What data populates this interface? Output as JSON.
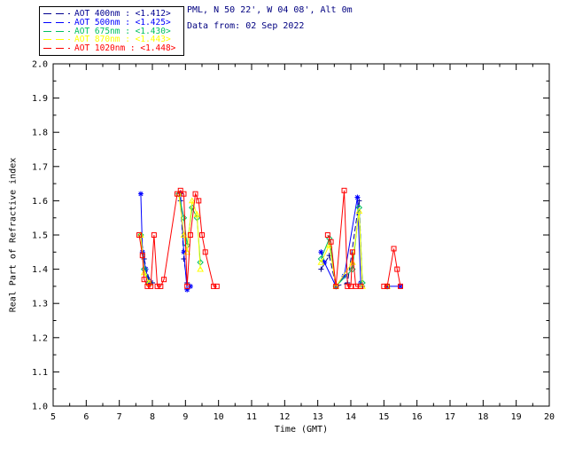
{
  "header": {
    "line1": "PML, N 50 22', W 04 08', Alt 0m",
    "line2": "Data from: 02 Sep 2022",
    "color": "#000080"
  },
  "legend": {
    "entries": [
      {
        "label": "AOT  400nm : <1.412>",
        "color": "#000090",
        "sample_dash": "9,5"
      },
      {
        "label": "AOT  500nm : <1.425>",
        "color": "#0000FF",
        "sample_dash": "9,5"
      },
      {
        "label": "AOT  675nm : <1.430>",
        "color": "#00C060",
        "sample_dash": "9,5"
      },
      {
        "label": "AOT  870nm : <1.443>",
        "color": "#FFFF00",
        "sample_dash": "9,5"
      },
      {
        "label": "AOT 1020nm : <1.448>",
        "color": "#FF0000",
        "sample_dash": "9,5"
      }
    ]
  },
  "chart_data": {
    "type": "line",
    "title": "",
    "xlabel": "Time (GMT)",
    "ylabel": "Real Part of Refractive index",
    "xlim": [
      5,
      20
    ],
    "ylim": [
      1.0,
      2.0
    ],
    "x_tick_step": 1,
    "y_tick_step": 0.1,
    "x_ticks": [
      "5",
      "6",
      "7",
      "8",
      "9",
      "10",
      "11",
      "12",
      "13",
      "14",
      "15",
      "16",
      "17",
      "18",
      "19",
      "20"
    ],
    "y_ticks": [
      "1.0",
      "1.1",
      "1.2",
      "1.3",
      "1.4",
      "1.5",
      "1.6",
      "1.7",
      "1.8",
      "1.9",
      "2.0"
    ],
    "grid": false,
    "legend_position": "outside-top-left",
    "series": [
      {
        "name": "AOT 400nm",
        "retrieved_value": "<1.412>",
        "color": "#000090",
        "marker": "plus",
        "dash": "6,3",
        "points": [
          [
            7.65,
            1.5
          ],
          [
            7.75,
            1.43
          ],
          [
            7.9,
            1.37
          ],
          [
            8.0,
            1.36
          ],
          [
            8.85,
            1.6
          ],
          [
            8.95,
            1.43
          ],
          [
            9.05,
            1.36
          ],
          [
            13.1,
            1.4
          ],
          [
            13.35,
            1.44
          ],
          [
            13.55,
            1.35
          ],
          [
            13.9,
            1.36
          ],
          [
            14.25,
            1.6
          ],
          [
            14.35,
            1.35
          ]
        ]
      },
      {
        "name": "AOT 500nm",
        "retrieved_value": "<1.425>",
        "color": "#0000FF",
        "marker": "asterisk",
        "dash": "",
        "points": [
          [
            7.65,
            1.62
          ],
          [
            7.7,
            1.45
          ],
          [
            7.8,
            1.4
          ],
          [
            7.9,
            1.36
          ],
          [
            8.85,
            1.62
          ],
          [
            8.95,
            1.45
          ],
          [
            9.05,
            1.34
          ],
          [
            9.15,
            1.35
          ],
          [
            13.1,
            1.45
          ],
          [
            13.2,
            1.42
          ],
          [
            13.55,
            1.35
          ],
          [
            13.8,
            1.38
          ],
          [
            14.2,
            1.61
          ],
          [
            14.3,
            1.36
          ],
          [
            15.1,
            1.35
          ],
          [
            15.5,
            1.35
          ]
        ]
      },
      {
        "name": "AOT 675nm",
        "retrieved_value": "<1.430>",
        "color": "#00C060",
        "marker": "diamond",
        "dash": "",
        "points": [
          [
            7.65,
            1.5
          ],
          [
            7.75,
            1.4
          ],
          [
            7.9,
            1.36
          ],
          [
            8.8,
            1.62
          ],
          [
            8.95,
            1.55
          ],
          [
            9.05,
            1.47
          ],
          [
            9.2,
            1.58
          ],
          [
            9.35,
            1.55
          ],
          [
            9.45,
            1.42
          ],
          [
            13.1,
            1.43
          ],
          [
            13.35,
            1.49
          ],
          [
            13.55,
            1.35
          ],
          [
            14.05,
            1.4
          ],
          [
            14.25,
            1.58
          ],
          [
            14.35,
            1.36
          ],
          [
            15.1,
            1.35
          ]
        ]
      },
      {
        "name": "AOT 870nm",
        "retrieved_value": "<1.443>",
        "color": "#FFFF00",
        "marker": "triangle",
        "dash": "",
        "points": [
          [
            7.65,
            1.5
          ],
          [
            7.75,
            1.39
          ],
          [
            7.9,
            1.36
          ],
          [
            8.8,
            1.62
          ],
          [
            8.95,
            1.5
          ],
          [
            9.05,
            1.45
          ],
          [
            9.2,
            1.6
          ],
          [
            9.35,
            1.56
          ],
          [
            9.45,
            1.4
          ],
          [
            13.1,
            1.42
          ],
          [
            13.35,
            1.47
          ],
          [
            13.55,
            1.35
          ],
          [
            14.05,
            1.42
          ],
          [
            14.25,
            1.57
          ],
          [
            14.35,
            1.35
          ],
          [
            15.1,
            1.35
          ]
        ]
      },
      {
        "name": "AOT 1020nm",
        "retrieved_value": "<1.448>",
        "color": "#FF0000",
        "marker": "square",
        "dash": "",
        "points": [
          [
            7.6,
            1.5
          ],
          [
            7.7,
            1.44
          ],
          [
            7.75,
            1.37
          ],
          [
            7.85,
            1.35
          ],
          [
            7.95,
            1.35
          ],
          [
            8.05,
            1.5
          ],
          [
            8.15,
            1.35
          ],
          [
            8.25,
            1.35
          ],
          [
            8.35,
            1.37
          ],
          [
            8.75,
            1.62
          ],
          [
            8.85,
            1.63
          ],
          [
            8.95,
            1.62
          ],
          [
            9.05,
            1.35
          ],
          [
            9.15,
            1.5
          ],
          [
            9.3,
            1.62
          ],
          [
            9.4,
            1.6
          ],
          [
            9.5,
            1.5
          ],
          [
            9.6,
            1.45
          ],
          [
            9.85,
            1.35
          ],
          [
            9.95,
            1.35
          ],
          [
            13.3,
            1.5
          ],
          [
            13.4,
            1.48
          ],
          [
            13.55,
            1.35
          ],
          [
            13.8,
            1.63
          ],
          [
            13.9,
            1.35
          ],
          [
            14.0,
            1.35
          ],
          [
            14.05,
            1.45
          ],
          [
            14.15,
            1.35
          ],
          [
            14.3,
            1.35
          ],
          [
            15.0,
            1.35
          ],
          [
            15.1,
            1.35
          ],
          [
            15.3,
            1.46
          ],
          [
            15.4,
            1.4
          ],
          [
            15.5,
            1.35
          ]
        ]
      }
    ]
  }
}
